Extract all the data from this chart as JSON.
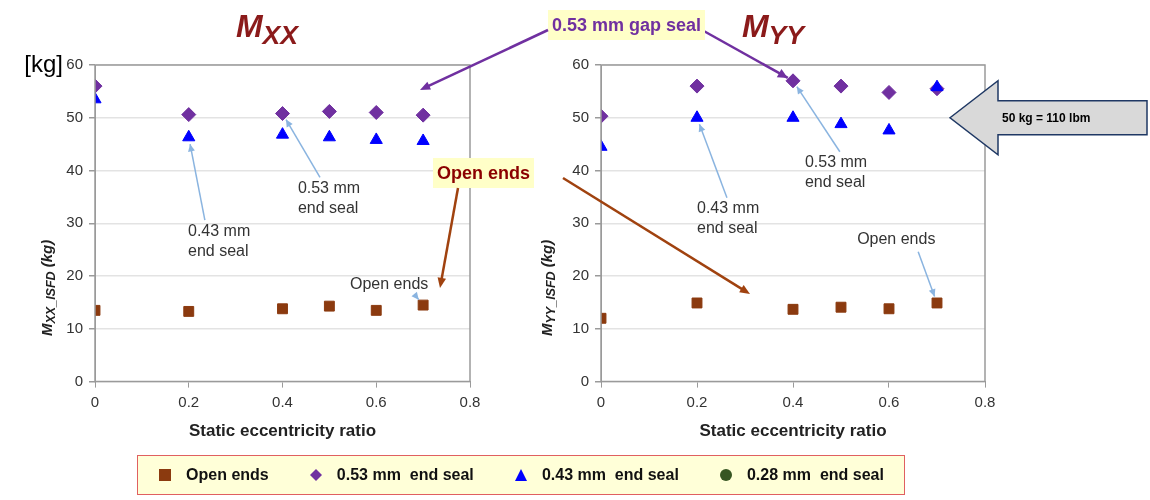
{
  "chart_data": [
    {
      "type": "scatter",
      "title": "M$_{XX}$",
      "xlabel": "Static eccentricity ratio",
      "ylabel": "M$_{XX_ISFD}$ (kg)",
      "x": [
        0,
        0.2,
        0.4,
        0.5,
        0.6,
        0.7
      ],
      "xlim": [
        0,
        0.8
      ],
      "xticks": [
        0,
        0.2,
        0.4,
        0.6,
        0.8
      ],
      "ylim": [
        0,
        60
      ],
      "yticks": [
        0,
        10,
        20,
        30,
        40,
        50,
        60
      ],
      "grid": "y",
      "legend": "bottom",
      "series": [
        {
          "name": "Open ends",
          "color": "#8b3a0f",
          "marker": "square",
          "values": [
            13.5,
            13.3,
            13.8,
            14.3,
            13.5,
            14.5
          ]
        },
        {
          "name": "0.53 mm  end seal",
          "color": "#7030a0",
          "marker": "diamond",
          "values": [
            56,
            50.6,
            50.8,
            51.2,
            51,
            50.5
          ]
        },
        {
          "name": "0.43 mm  end seal",
          "color": "#0000ff",
          "marker": "triangle",
          "values": [
            53.5,
            46.3,
            46.8,
            46.3,
            45.8,
            45.6
          ]
        },
        {
          "name": "0.28 mm  end seal",
          "color": "#375623",
          "marker": "circle",
          "values": [
            null,
            null,
            null,
            null,
            null,
            null
          ]
        }
      ],
      "annotations": [
        "[kg]",
        {
          "text": "0.43 mm end seal",
          "x": 0.2,
          "y": 46.3
        },
        {
          "text": "0.53 mm end seal",
          "x": 0.4,
          "y": 50.8
        },
        {
          "text": "Open ends",
          "x": 0.7,
          "y": 14.5
        },
        "Open ends"
      ]
    },
    {
      "type": "scatter",
      "title": "M$_{YY}$",
      "xlabel": "Static eccentricity ratio",
      "ylabel": "M$_{YY_ISFD}$ (kg)",
      "x": [
        0,
        0.2,
        0.4,
        0.5,
        0.6,
        0.7
      ],
      "xlim": [
        0,
        0.8
      ],
      "xticks": [
        0,
        0.2,
        0.4,
        0.6,
        0.8
      ],
      "ylim": [
        0,
        60
      ],
      "yticks": [
        0,
        10,
        20,
        30,
        40,
        50,
        60
      ],
      "grid": "y",
      "series": [
        {
          "color": "#8b3a0f",
          "marker": "square",
          "values": [
            12,
            14.9,
            13.7,
            14.1,
            13.8,
            14.9
          ]
        },
        {
          "color": "#7030a0",
          "marker": "diamond",
          "values": [
            50.3,
            56,
            57,
            56,
            54.8,
            55.5
          ]
        },
        {
          "color": "#0000ff",
          "marker": "triangle",
          "values": [
            44.5,
            50,
            50,
            48.8,
            47.6,
            55.8
          ]
        },
        {
          "color": "#375623",
          "marker": "circle",
          "values": [
            null,
            null,
            null,
            null,
            null,
            null
          ]
        }
      ],
      "annotations": [
        {
          "text": "0.53 mm gap seal",
          "x": 0.4,
          "y": 57
        },
        {
          "text": "0.43 mm end seal",
          "x": 0.2,
          "y": 50
        },
        {
          "text": "0.53 mm end seal",
          "x": 0.4,
          "y": 57
        },
        {
          "text": "Open ends",
          "x": 0.7,
          "y": 14.9
        },
        "50 kg = 110 lbm"
      ]
    }
  ]
}
